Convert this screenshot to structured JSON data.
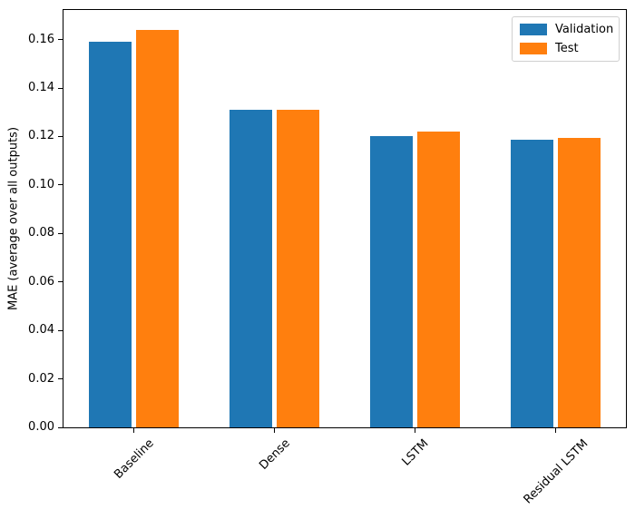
{
  "chart_data": {
    "type": "bar",
    "title": "",
    "categories": [
      "Baseline",
      "Dense",
      "LSTM",
      "Residual LSTM"
    ],
    "series": [
      {
        "name": "Validation",
        "color": "#1f77b4",
        "values": [
          0.159,
          0.131,
          0.12,
          0.1185
        ]
      },
      {
        "name": "Test",
        "color": "#ff7f0e",
        "values": [
          0.164,
          0.131,
          0.122,
          0.1195
        ]
      }
    ],
    "xlabel": "",
    "ylabel": "MAE (average over all outputs)",
    "ylim": [
      0,
      0.1722
    ],
    "yticks": [
      0.0,
      0.02,
      0.04,
      0.06,
      0.08,
      0.1,
      0.12,
      0.14,
      0.16
    ],
    "ytick_format_decimals": 2,
    "x_tick_rotation": 45,
    "grid": false,
    "legend_position": "upper right",
    "spine_color": "#000000",
    "background_color": "#ffffff"
  }
}
